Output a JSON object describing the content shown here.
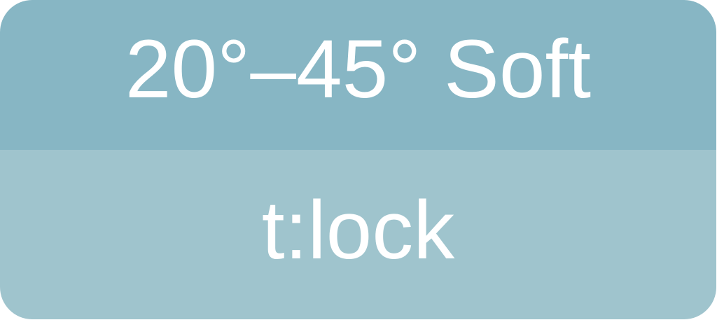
{
  "badge": {
    "angle_label": "20°–45° Soft",
    "mode_label": "t:lock"
  },
  "colors": {
    "top_band": "#87b6c4",
    "bottom_band": "#9fc4cd",
    "text": "#ffffff"
  }
}
